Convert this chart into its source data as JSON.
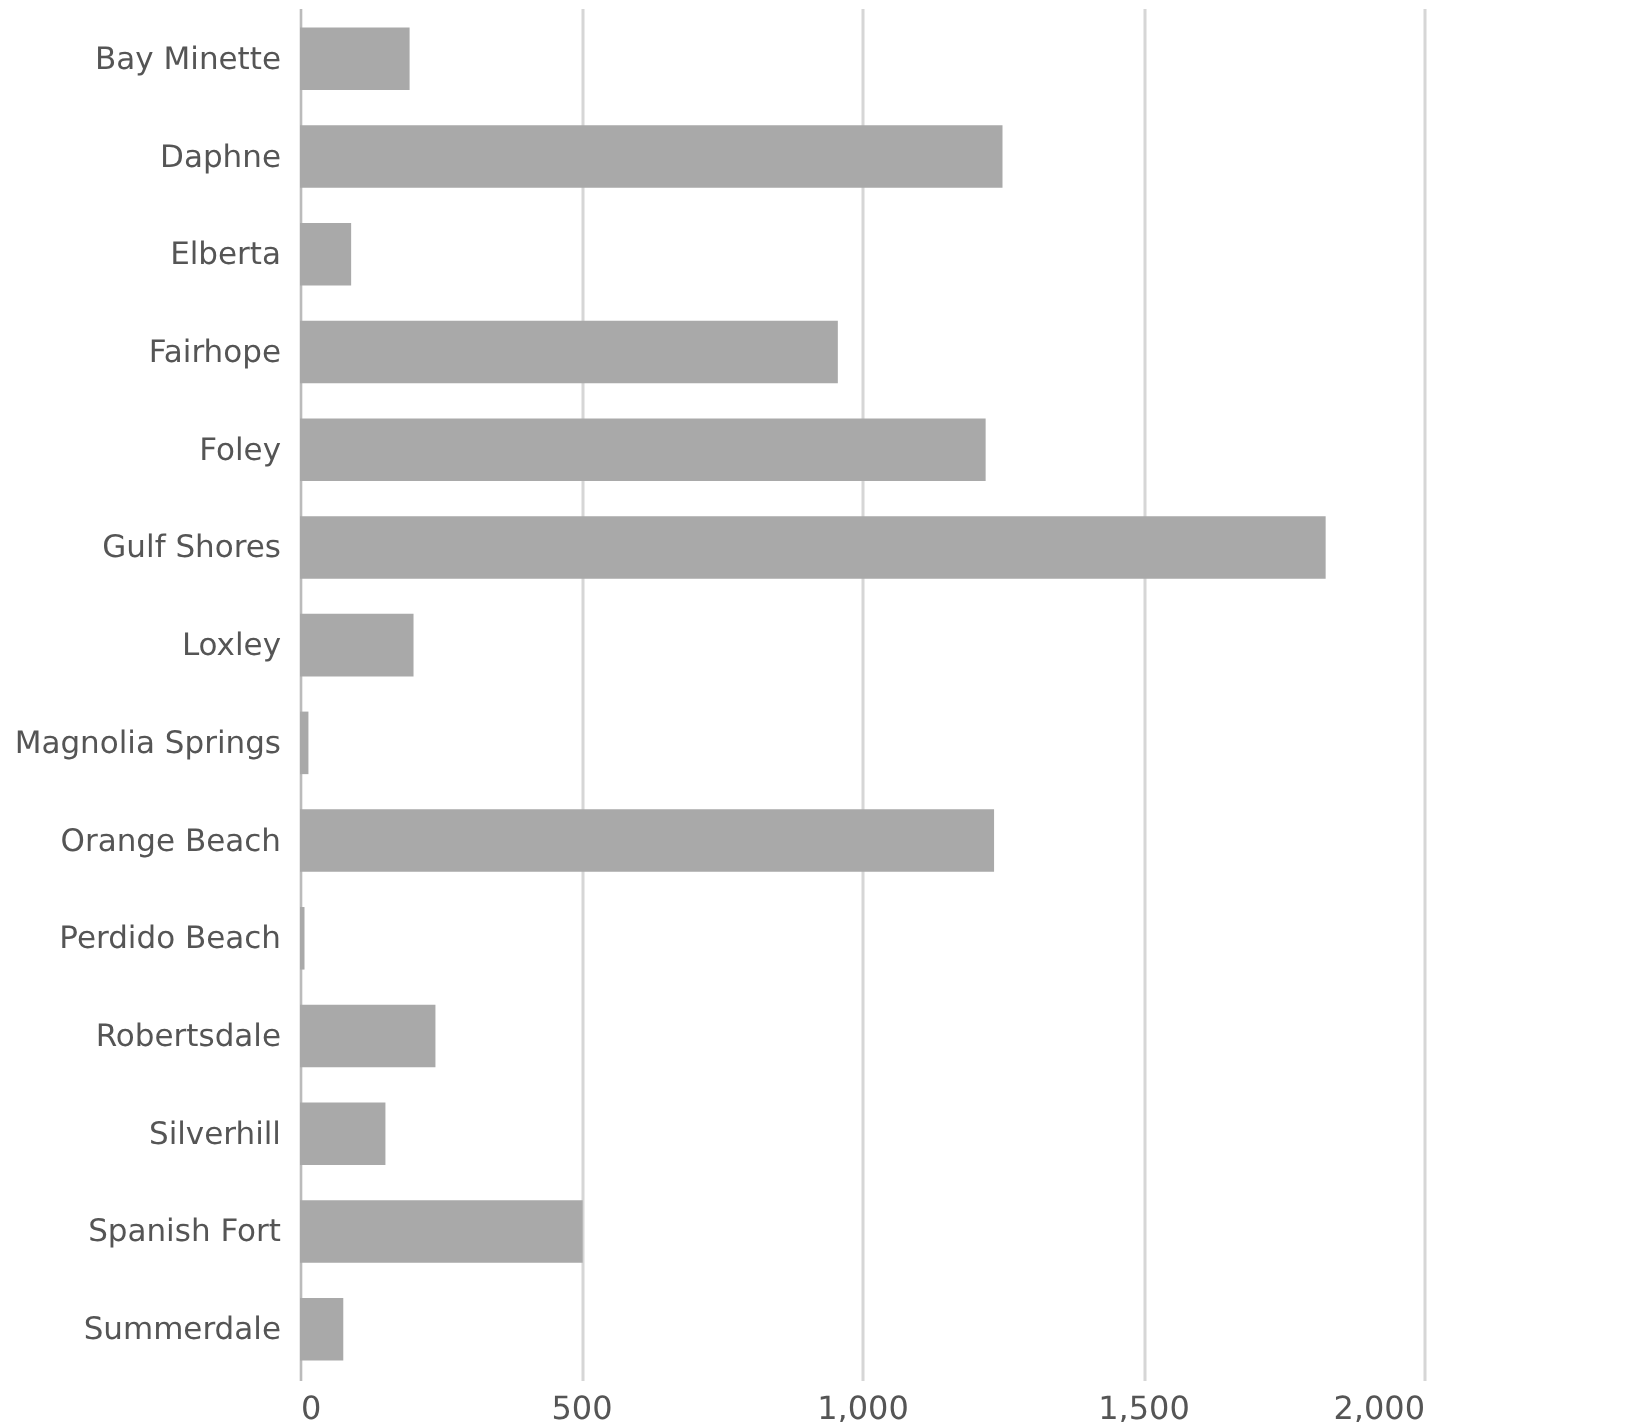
{
  "chart_data": {
    "type": "bar",
    "orientation": "horizontal",
    "categories": [
      "Bay Minette",
      "Daphne",
      "Elberta",
      "Fairhope",
      "Foley",
      "Gulf Shores",
      "Loxley",
      "Magnolia Springs",
      "Orange Beach",
      "Perdido Beach",
      "Robertsdale",
      "Silverhill",
      "Spanish Fort",
      "Summerdale"
    ],
    "values": [
      195,
      1250,
      91,
      957,
      1220,
      1825,
      202,
      15,
      1235,
      8,
      241,
      152,
      503,
      77
    ],
    "color": "#a9a9a9",
    "xlim": [
      0,
      2000
    ],
    "xticks": [
      {
        "value": 0,
        "label": "0"
      },
      {
        "value": 500,
        "label": "500"
      },
      {
        "value": 1000,
        "label": "1,000"
      },
      {
        "value": 1500,
        "label": "1,500"
      },
      {
        "value": 2000,
        "label": "2,000"
      }
    ],
    "grid": "x"
  }
}
